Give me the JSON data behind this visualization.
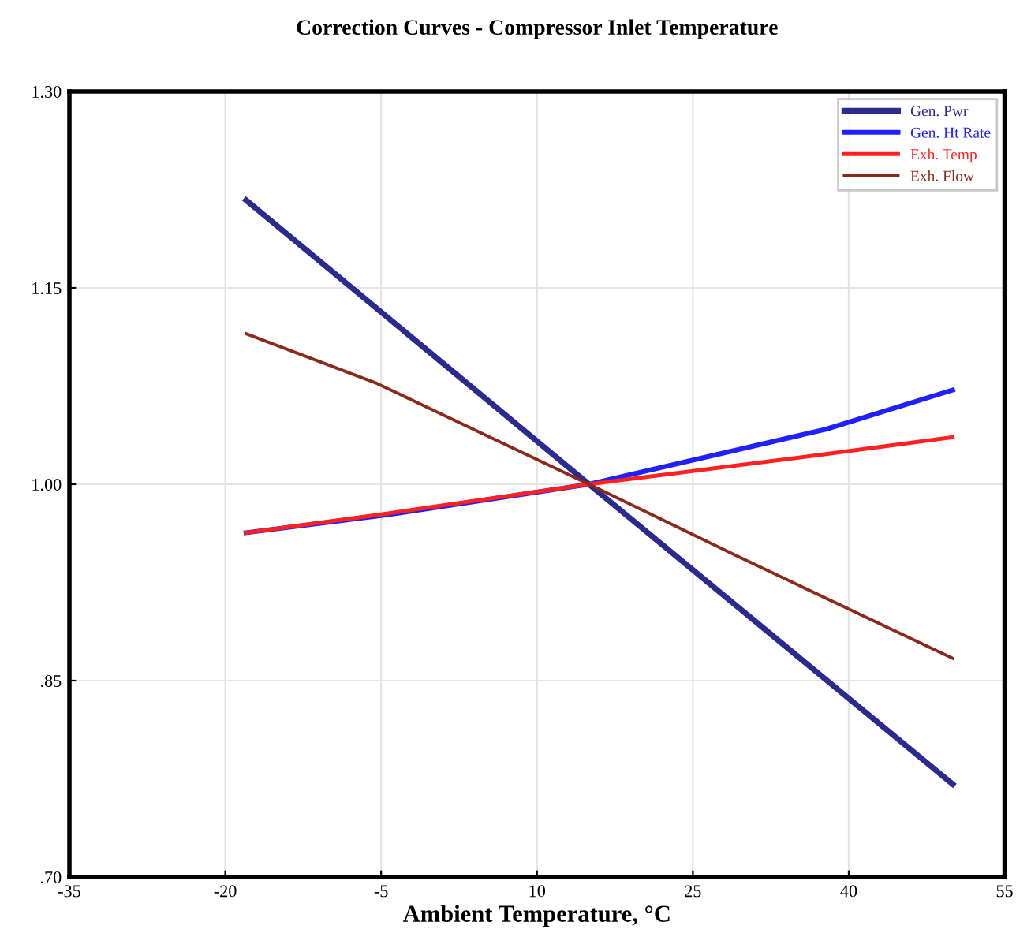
{
  "chart_data": {
    "type": "line",
    "title": "Correction Curves - Compressor Inlet Temperature",
    "xlabel": "Ambient Temperature, °C",
    "xlim": [
      -35,
      55
    ],
    "xticks": [
      -35,
      -20,
      -5,
      10,
      25,
      40,
      55
    ],
    "ylim": [
      0.7,
      1.3
    ],
    "yticks": [
      {
        "value": 1.3,
        "label": "1.30"
      },
      {
        "value": 1.15,
        "label": "1.15"
      },
      {
        "value": 1.0,
        "label": "1.00"
      },
      {
        "value": 0.85,
        "label": ".85"
      },
      {
        "value": 0.7,
        "label": ".70"
      }
    ],
    "grid": true,
    "legend": "top right",
    "line_style": "solid",
    "marker": "none",
    "series": [
      {
        "name": "Gen. Pwr",
        "color": "#2b2b8f",
        "x": [
          -18,
          15,
          50
        ],
        "values": [
          1.217,
          1.0,
          0.771
        ]
      },
      {
        "name": "Gen. Ht Rate",
        "color": "#2020ff",
        "x": [
          -18,
          -5,
          15,
          37.8,
          50
        ],
        "values": [
          0.963,
          0.976,
          1.0,
          1.042,
          1.072
        ]
      },
      {
        "name": "Exh. Temp",
        "color": "#ff2020",
        "x": [
          -18,
          -5,
          15,
          37.8,
          50
        ],
        "values": [
          0.963,
          0.977,
          1.0,
          1.023,
          1.036
        ]
      },
      {
        "name": "Exh. Flow",
        "color": "#8b2a1a",
        "x": [
          -18,
          -5.4,
          15,
          29.3,
          50
        ],
        "values": [
          1.115,
          1.077,
          1.0,
          0.945,
          0.867
        ]
      }
    ]
  }
}
